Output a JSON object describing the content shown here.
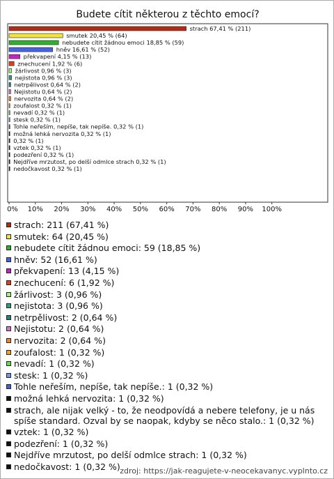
{
  "chart_data": {
    "type": "bar",
    "orientation": "horizontal",
    "title": "Budete cítit některou z těchto emocí?",
    "categories": [
      "strach",
      "smutek",
      "nebudete cítit žádnou emoci",
      "hněv",
      "překvapení",
      "znechucení",
      "žárlivost",
      "nejistota",
      "netrpělivost",
      "Nejistotu",
      "nervozita",
      "zoufalost",
      "nevadí",
      "stesk",
      "Tohle neřeším, nepíše, tak nepíše.",
      "možná lehká nervozita",
      "strach, ale nijak velký - to, že neodpovídá a nebere telefony, je u nás spíše standard. Ozval by se naopak, kdyby se něco stalo.",
      "vztek",
      "podezření",
      "Nejdříve mrzutost, po delší odmlce strach",
      "nedočkavost"
    ],
    "values": [
      67.41,
      20.45,
      18.85,
      16.61,
      4.15,
      1.92,
      0.96,
      0.96,
      0.64,
      0.64,
      0.64,
      0.32,
      0.32,
      0.32,
      0.32,
      0.32,
      0.32,
      0.32,
      0.32,
      0.32,
      0.32
    ],
    "value_labels": [
      "strach 67,41 % (211)",
      "smutek 20,45 % (64)",
      "nebudete cítit žádnou emoci 18,85 % (59)",
      "hněv 16,61 % (52)",
      "překvapení 4,15 % (13)",
      "znechucení 1,92 % (6)",
      "žárlivost 0,96 % (3)",
      "nejistota 0,96 % (3)",
      "netrpělivost 0,64 % (2)",
      "Nejistotu 0,64 % (2)",
      "nervozita 0,64 % (2)",
      "zoufalost 0,32 % (1)",
      "nevadí 0,32 % (1)",
      "stesk 0,32 % (1)",
      "Tohle neřeším, nepíše, tak nepíše. 0,32 % (1)",
      "možná lehká nervozita 0,32 % (1)",
      "0,32 % (1)",
      "vztek 0,32 % (1)",
      "podezření 0,32 % (1)",
      "Nejdříve mrzutost, po delší odmlce strach 0,32 % (1)",
      "nedočkavost 0,32 % (1)"
    ],
    "legend_labels": [
      "strach: 211 (67,41 %)",
      "smutek: 64 (20,45 %)",
      "nebudete cítit žádnou emoci: 59 (18,85 %)",
      "hněv: 52 (16,61 %)",
      "překvapení: 13 (4,15 %)",
      "znechucení: 6 (1,92 %)",
      "žárlivost: 3 (0,96 %)",
      "nejistota: 3 (0,96 %)",
      "netrpělivost: 2 (0,64 %)",
      "Nejistotu: 2 (0,64 %)",
      "nervozita: 2 (0,64 %)",
      "zoufalost: 1 (0,32 %)",
      "nevadí: 1 (0,32 %)",
      "stesk: 1 (0,32 %)",
      "Tohle neřeším, nepíše, tak nepíše.: 1 (0,32 %)",
      "možná lehká nervozita: 1 (0,32 %)",
      "strach, ale nijak velký - to, že neodpovídá a nebere telefony, je u nás spíše standard. Ozval by se naopak, kdyby se něco stalo.: 1 (0,32 %)",
      "vztek: 1 (0,32 %)",
      "podezření: 1 (0,32 %)",
      "Nejdříve mrzutost, po delší odmlce strach: 1 (0,32 %)",
      "nedočkavost: 1 (0,32 %)"
    ],
    "colors": [
      "#b52a12",
      "#f2e33c",
      "#2fb02f",
      "#4863e0",
      "#c423c4",
      "#d8421f",
      "#a6f07f",
      "#2f9f7a",
      "#2e8080",
      "#d27ac6",
      "#f08a22",
      "#f0a421",
      "#62e043",
      "#7b93e2",
      "#4662c4",
      "#111111",
      "#111111",
      "#111111",
      "#111111",
      "#111111",
      "#111111"
    ],
    "xlim": [
      0,
      121
    ],
    "xticks": [
      {
        "value": 0,
        "label": "0%"
      },
      {
        "value": 10,
        "label": "10%"
      },
      {
        "value": 20,
        "label": "20%"
      },
      {
        "value": 30,
        "label": "30%"
      },
      {
        "value": 40,
        "label": "40%"
      },
      {
        "value": 50,
        "label": "50%"
      },
      {
        "value": 60,
        "label": "60%"
      },
      {
        "value": 70,
        "label": "70%"
      },
      {
        "value": 80,
        "label": "80%"
      },
      {
        "value": 90,
        "label": "90%"
      },
      {
        "value": 100,
        "label": "100%"
      }
    ],
    "source": "zdroj: https://jak-reagujete-v-neocekavanyc.vyplnto.cz"
  }
}
